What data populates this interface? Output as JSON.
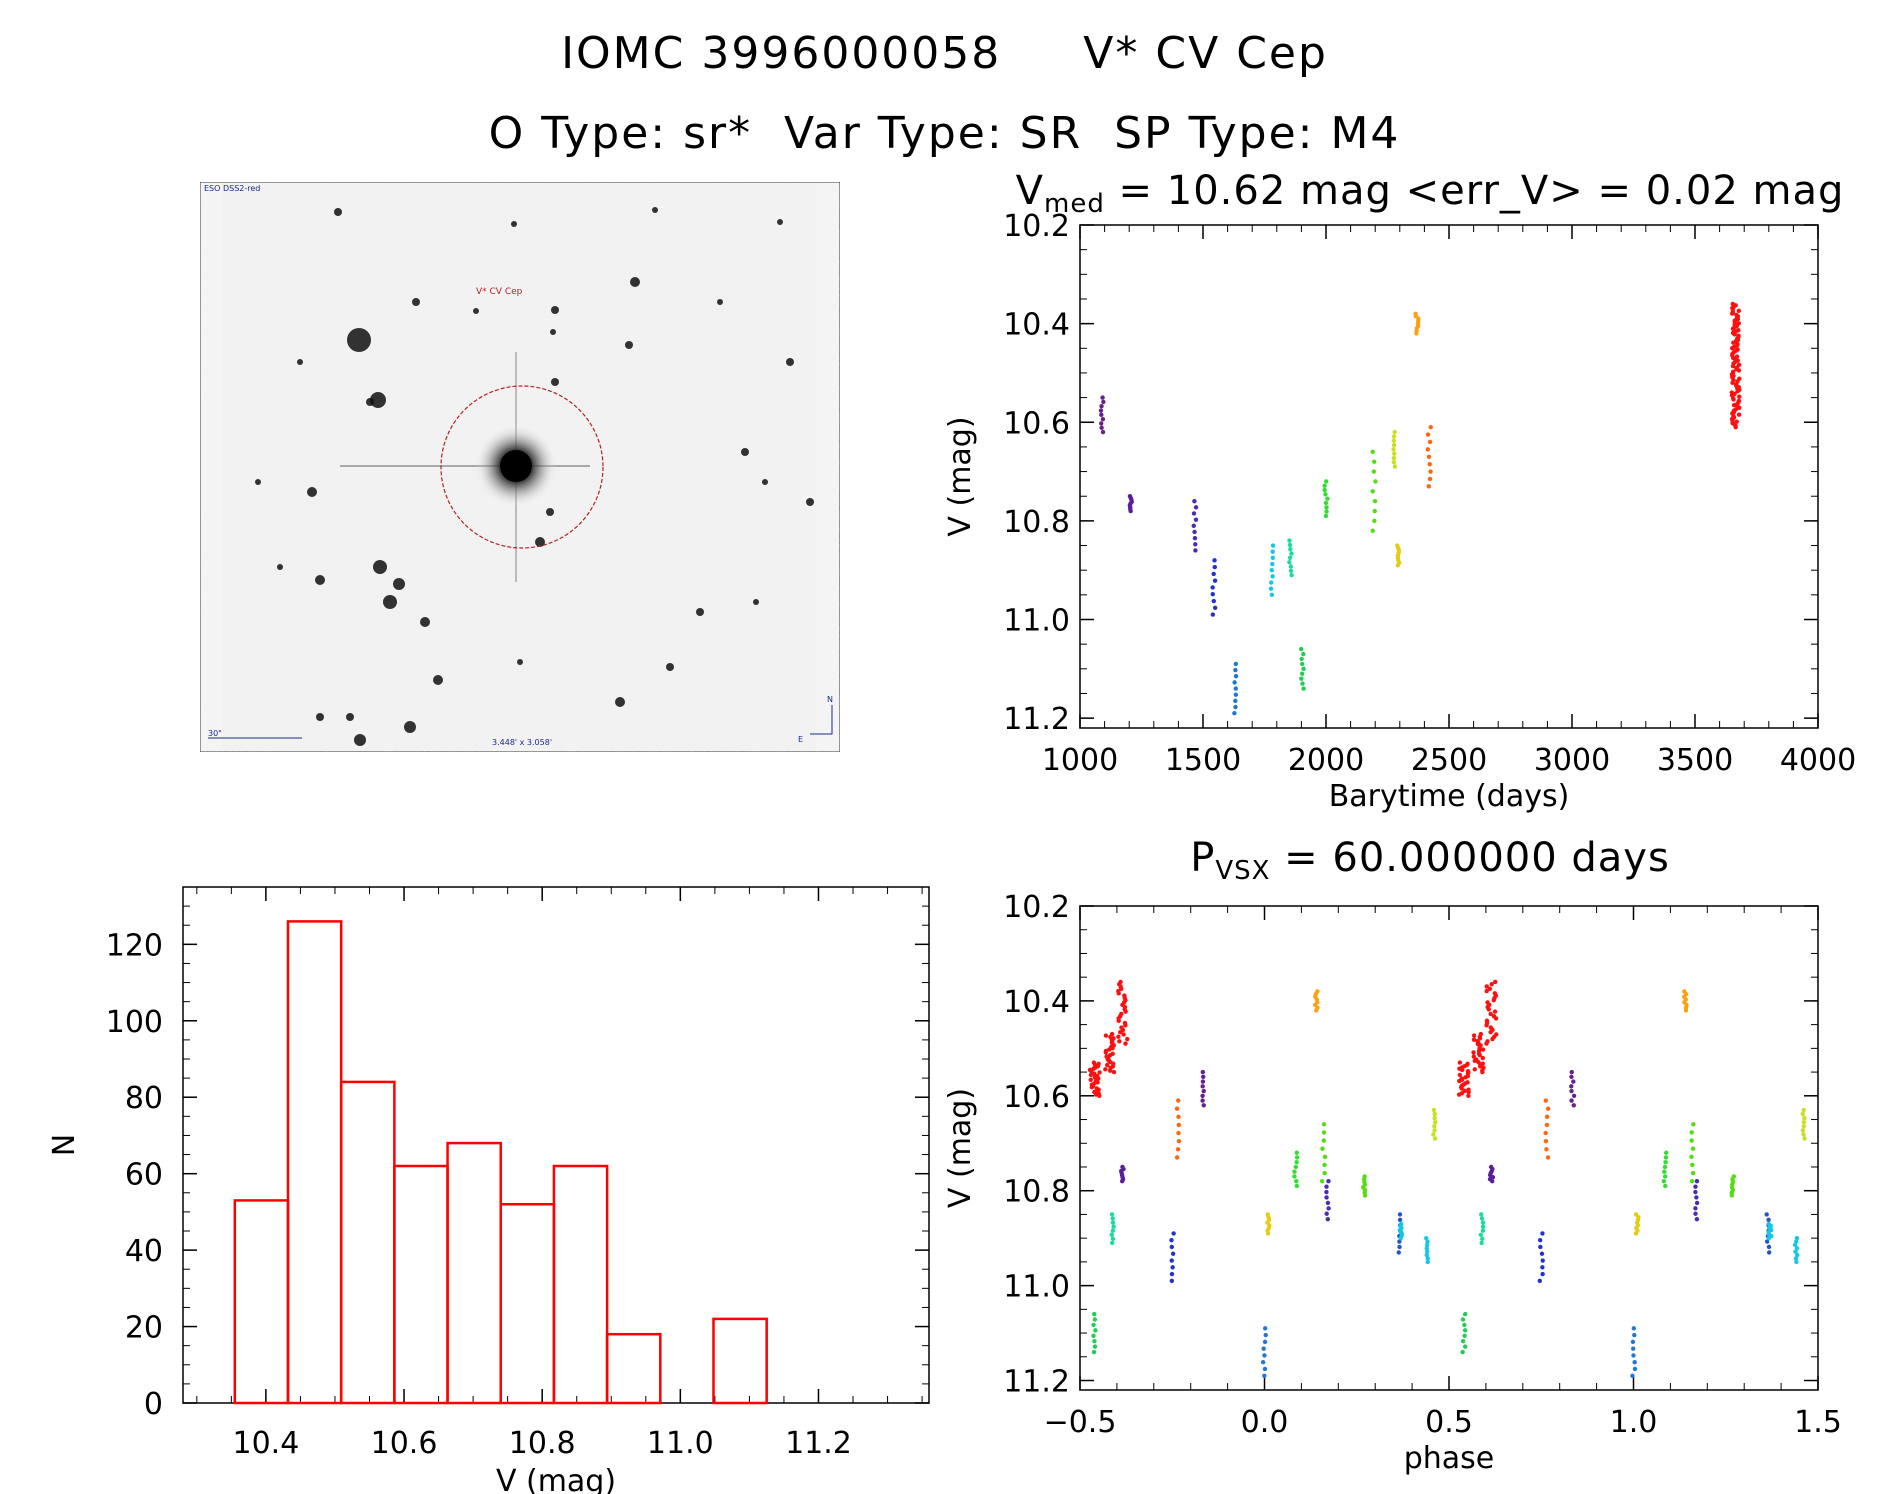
{
  "header": {
    "line1_id": "IOMC 3996000058",
    "line1_name": "V* CV Cep",
    "line2": "O Type: sr*  Var Type: SR  SP Type: M4"
  },
  "sky_image": {
    "survey_label": "ESO DSS2-red",
    "target_label": "V* CV Cep",
    "scale_label": "30\"",
    "fov_label": "3.448' x 3.058'",
    "north_label": "N",
    "east_label": "E"
  },
  "lightcurve": {
    "title_base": "V",
    "title_sub": "med",
    "title_rest": " = 10.62 mag <err_V> = 0.02 mag",
    "xlabel": "Barytime (days)",
    "ylabel": "V (mag)"
  },
  "phased": {
    "title_base": "P",
    "title_sub": "VSX",
    "title_rest": " = 60.000000 days",
    "xlabel": "phase",
    "ylabel": "V (mag)"
  },
  "histogram": {
    "xlabel": "V (mag)",
    "ylabel": "N"
  },
  "colors": {
    "hist": "#ff0000",
    "axis": "#000000",
    "circle": "#b22222"
  },
  "chart_data": [
    {
      "type": "scatter",
      "name": "lightcurve",
      "xlabel": "Barytime (days)",
      "ylabel": "V (mag)",
      "xlim": [
        1000,
        4000
      ],
      "ylim": [
        11.22,
        10.2
      ],
      "inverted_y": true,
      "xticks": [
        1000,
        1500,
        2000,
        2500,
        3000,
        3500,
        4000
      ],
      "yticks": [
        10.2,
        10.4,
        10.6,
        10.8,
        11.0,
        11.2
      ],
      "groups": [
        {
          "t": 1090,
          "vmin": 10.55,
          "vmax": 10.62,
          "color": "#6b1f8a"
        },
        {
          "t": 1205,
          "vmin": 10.75,
          "vmax": 10.78,
          "color": "#5b1e9a"
        },
        {
          "t": 1468,
          "vmin": 10.76,
          "vmax": 10.86,
          "color": "#4b2bb0"
        },
        {
          "t": 1545,
          "vmin": 10.88,
          "vmax": 10.99,
          "color": "#2233cc"
        },
        {
          "t": 1630,
          "vmin": 11.09,
          "vmax": 11.19,
          "color": "#1e78d8"
        },
        {
          "t": 1780,
          "vmin": 10.85,
          "vmax": 10.95,
          "color": "#11c8e6"
        },
        {
          "t": 1855,
          "vmin": 10.84,
          "vmax": 10.91,
          "color": "#19dca0"
        },
        {
          "t": 1905,
          "vmin": 11.06,
          "vmax": 11.14,
          "color": "#22cc55"
        },
        {
          "t": 2000,
          "vmin": 10.72,
          "vmax": 10.79,
          "color": "#33dd33"
        },
        {
          "t": 2195,
          "vmin": 10.66,
          "vmax": 10.82,
          "color": "#55dd11"
        },
        {
          "t": 2275,
          "vmin": 10.62,
          "vmax": 10.69,
          "color": "#c8e020"
        },
        {
          "t": 2295,
          "vmin": 10.85,
          "vmax": 10.89,
          "color": "#e6cc14"
        },
        {
          "t": 2370,
          "vmin": 10.38,
          "vmax": 10.42,
          "color": "#ffa010"
        },
        {
          "t": 2420,
          "vmin": 10.61,
          "vmax": 10.73,
          "color": "#ff6611"
        },
        {
          "t": 3665,
          "vmin": 10.36,
          "vmax": 10.61,
          "color": "#ff1010"
        }
      ]
    },
    {
      "type": "scatter",
      "name": "phased",
      "xlabel": "phase",
      "ylabel": "V (mag)",
      "xlim": [
        -0.5,
        1.5
      ],
      "ylim": [
        11.22,
        10.2
      ],
      "inverted_y": true,
      "xticks": [
        -0.5,
        0.0,
        0.5,
        1.0,
        1.5
      ],
      "yticks": [
        10.2,
        10.4,
        10.6,
        10.8,
        11.0,
        11.2
      ],
      "groups": [
        {
          "p": -0.46,
          "vmin": 10.53,
          "vmax": 10.6,
          "color": "#ff1010"
        },
        {
          "p": -0.42,
          "vmin": 10.47,
          "vmax": 10.55,
          "color": "#ff1010"
        },
        {
          "p": -0.385,
          "vmin": 10.36,
          "vmax": 10.49,
          "color": "#ff1010"
        },
        {
          "p": -0.46,
          "vmin": 11.06,
          "vmax": 11.14,
          "color": "#22cc55"
        },
        {
          "p": -0.41,
          "vmin": 10.85,
          "vmax": 10.91,
          "color": "#19dca0"
        },
        {
          "p": -0.385,
          "vmin": 10.75,
          "vmax": 10.78,
          "color": "#5b1e9a"
        },
        {
          "p": -0.25,
          "vmin": 10.89,
          "vmax": 10.99,
          "color": "#2233cc"
        },
        {
          "p": -0.235,
          "vmin": 10.61,
          "vmax": 10.73,
          "color": "#ff6611"
        },
        {
          "p": -0.165,
          "vmin": 10.55,
          "vmax": 10.62,
          "color": "#6b1f8a"
        },
        {
          "p": 0.01,
          "vmin": 10.85,
          "vmax": 10.89,
          "color": "#e6cc14"
        },
        {
          "p": 0.0,
          "vmin": 11.09,
          "vmax": 11.19,
          "color": "#1e78d8"
        },
        {
          "p": 0.14,
          "vmin": 10.38,
          "vmax": 10.42,
          "color": "#ffa010"
        },
        {
          "p": 0.085,
          "vmin": 10.72,
          "vmax": 10.79,
          "color": "#33dd33"
        },
        {
          "p": 0.16,
          "vmin": 10.66,
          "vmax": 10.78,
          "color": "#55dd11"
        },
        {
          "p": 0.17,
          "vmin": 10.78,
          "vmax": 10.86,
          "color": "#4b2bb0"
        },
        {
          "p": 0.27,
          "vmin": 10.77,
          "vmax": 10.81,
          "color": "#55dd11"
        },
        {
          "p": 0.365,
          "vmin": 10.85,
          "vmax": 10.93,
          "color": "#2255cc"
        },
        {
          "p": 0.37,
          "vmin": 10.87,
          "vmax": 10.9,
          "color": "#11c8e6"
        },
        {
          "p": 0.44,
          "vmin": 10.9,
          "vmax": 10.95,
          "color": "#11c8e6"
        },
        {
          "p": 0.46,
          "vmin": 10.63,
          "vmax": 10.69,
          "color": "#c8e020"
        }
      ],
      "note_second_cycle_offset": 1.0
    },
    {
      "type": "bar",
      "name": "histogram",
      "xlabel": "V (mag)",
      "ylabel": "N",
      "xlim": [
        10.28,
        11.36
      ],
      "ylim": [
        0,
        135
      ],
      "xticks": [
        10.4,
        10.6,
        10.8,
        11.0,
        11.2
      ],
      "yticks": [
        0,
        20,
        40,
        60,
        80,
        100,
        120
      ],
      "bin_edges": [
        10.355,
        10.432,
        10.509,
        10.586,
        10.663,
        10.74,
        10.817,
        10.894,
        10.971,
        11.048,
        11.125,
        11.202
      ],
      "values": [
        53,
        126,
        84,
        62,
        68,
        52,
        62,
        18,
        1,
        22,
        2
      ]
    }
  ]
}
